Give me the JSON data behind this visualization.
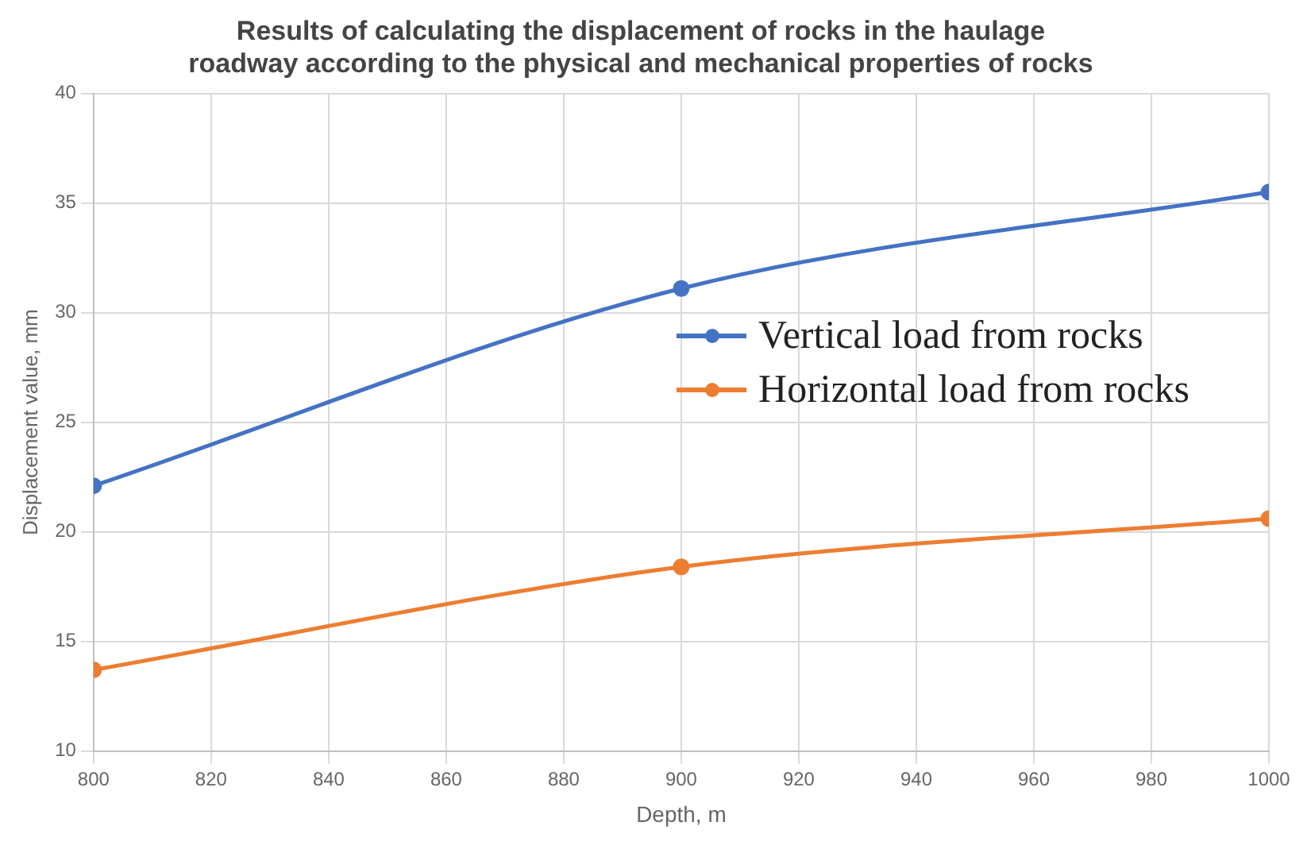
{
  "chart_data": {
    "type": "line",
    "title": "Results of calculating the displacement of rocks in the haulage roadway according to the physical and mechanical properties of rocks",
    "xlabel": "Depth, m",
    "ylabel": "Displacement value, mm",
    "x": [
      800,
      900,
      1000
    ],
    "series": [
      {
        "name": "Vertical load from rocks",
        "color": "#4472c4",
        "values": [
          22.1,
          31.1,
          35.5
        ]
      },
      {
        "name": "Horizontal load from rocks",
        "color": "#ed7d31",
        "values": [
          13.7,
          18.4,
          20.6
        ]
      }
    ],
    "xlim": [
      800,
      1000
    ],
    "xticks": [
      800,
      820,
      840,
      860,
      880,
      900,
      920,
      940,
      960,
      980,
      1000
    ],
    "ylim": [
      10,
      40
    ],
    "yticks": [
      10,
      15,
      20,
      25,
      30,
      35,
      40
    ],
    "grid": true,
    "legend": "right",
    "marker": "circle",
    "line_style": "solid"
  }
}
